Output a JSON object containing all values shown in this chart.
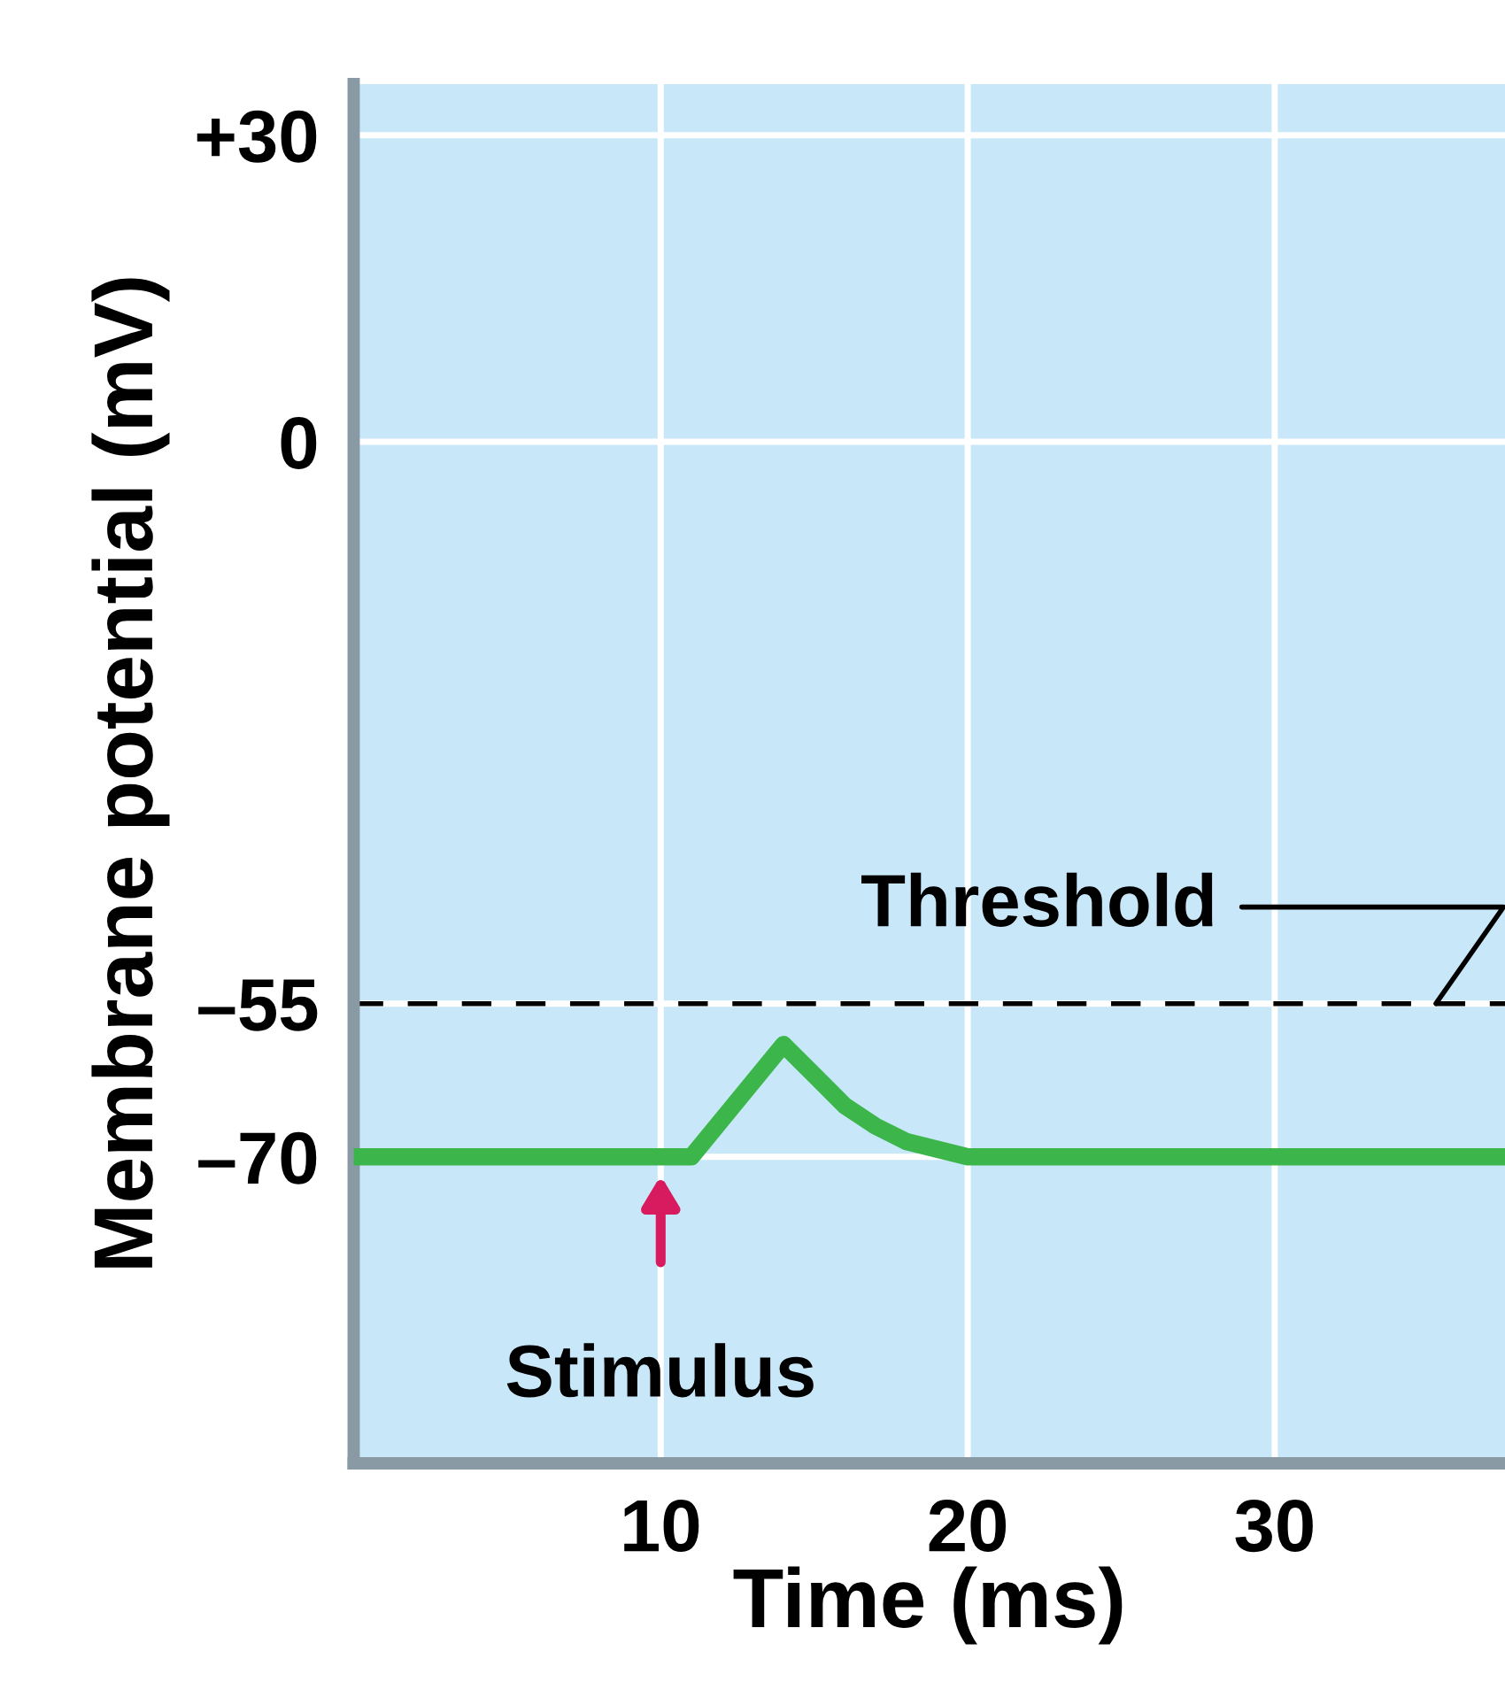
{
  "chart_data": {
    "type": "line",
    "xlabel": "Time (ms)",
    "ylabel": "Membrane potential (mV)",
    "x": [
      0,
      11,
      14,
      15,
      16,
      17,
      18,
      20,
      37.5
    ],
    "series": [
      {
        "color": "#3cb64a",
        "values": [
          -70,
          -70,
          -59,
          -62,
          -65,
          -67,
          -68.5,
          -70,
          -70
        ]
      }
    ],
    "xlim": [
      0,
      37.5
    ],
    "ylim": [
      -100,
      35
    ],
    "xticks": [
      10,
      20,
      30
    ],
    "yticks": [
      {
        "value": 30,
        "label": "+30"
      },
      {
        "value": 0,
        "label": "0"
      },
      {
        "value": -55,
        "label": "–55"
      },
      {
        "value": -70,
        "label": "–70"
      }
    ],
    "grid": true,
    "line_style": "solid",
    "marker": "none",
    "ref_lines": [
      {
        "axis": "y",
        "value": -55,
        "label": "Threshold",
        "color": "#000000",
        "line_style": "dashed"
      }
    ],
    "annotations": [
      {
        "text": "Stimulus",
        "x": 10,
        "y": -70
      }
    ]
  }
}
